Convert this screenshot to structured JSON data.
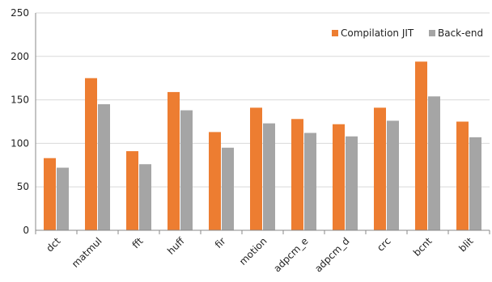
{
  "chart_data": {
    "type": "bar",
    "title": "",
    "xlabel": "",
    "ylabel": "",
    "categories": [
      "dct",
      "matmul",
      "fft",
      "huff",
      "fir",
      "motion",
      "adpcm_e",
      "adpcm_d",
      "crc",
      "bcnt",
      "blit"
    ],
    "series": [
      {
        "name": "Compilation JIT",
        "color": "#ed7d31",
        "values": [
          83,
          175,
          91,
          159,
          113,
          141,
          128,
          122,
          141,
          194,
          125
        ]
      },
      {
        "name": "Back-end",
        "color": "#a5a5a5",
        "values": [
          72,
          145,
          76,
          138,
          95,
          123,
          112,
          108,
          126,
          154,
          107
        ]
      }
    ],
    "ylim": [
      0,
      250
    ],
    "yticks": [
      0,
      50,
      100,
      150,
      200,
      250
    ],
    "grid": true,
    "legend_position": "top-right",
    "axis_color": "#888888",
    "grid_color": "#d9d9d9"
  }
}
